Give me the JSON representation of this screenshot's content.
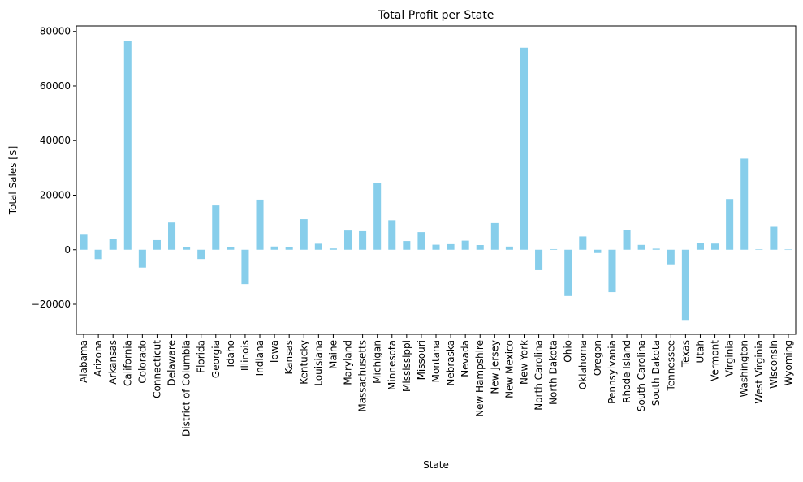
{
  "chart_data": {
    "type": "bar",
    "title": "Total Profit per State",
    "xlabel": "State",
    "ylabel": "Total Sales [$]",
    "ylim": [
      -31000,
      82000
    ],
    "yticks": [
      -20000,
      0,
      20000,
      40000,
      60000,
      80000
    ],
    "ytick_labels": [
      "−20000",
      "0",
      "20000",
      "40000",
      "60000",
      "80000"
    ],
    "grid": false,
    "legend": "none",
    "bar_color": "#87ceeb",
    "categories": [
      "Alabama",
      "Arizona",
      "Arkansas",
      "California",
      "Colorado",
      "Connecticut",
      "Delaware",
      "District of Columbia",
      "Florida",
      "Georgia",
      "Idaho",
      "Illinois",
      "Indiana",
      "Iowa",
      "Kansas",
      "Kentucky",
      "Louisiana",
      "Maine",
      "Maryland",
      "Massachusetts",
      "Michigan",
      "Minnesota",
      "Mississippi",
      "Missouri",
      "Montana",
      "Nebraska",
      "Nevada",
      "New Hampshire",
      "New Jersey",
      "New Mexico",
      "New York",
      "North Carolina",
      "North Dakota",
      "Ohio",
      "Oklahoma",
      "Oregon",
      "Pennsylvania",
      "Rhode Island",
      "South Carolina",
      "South Dakota",
      "Tennessee",
      "Texas",
      "Utah",
      "Vermont",
      "Virginia",
      "Washington",
      "West Virginia",
      "Wisconsin",
      "Wyoming"
    ],
    "values": [
      5787,
      -3428,
      4009,
      76381,
      -6527,
      3511,
      9977,
      1060,
      -3399,
      16250,
      827,
      -12608,
      18383,
      1184,
      837,
      11200,
      2196,
      454,
      7031,
      6786,
      24463,
      10823,
      3172,
      6436,
      1833,
      2037,
      3317,
      1707,
      9773,
      1157,
      74039,
      -7491,
      230,
      -16971,
      4854,
      -1190,
      -15560,
      7286,
      1769,
      395,
      -5342,
      -25729,
      2547,
      2244,
      18598,
      33403,
      186,
      8402,
      100
    ]
  }
}
